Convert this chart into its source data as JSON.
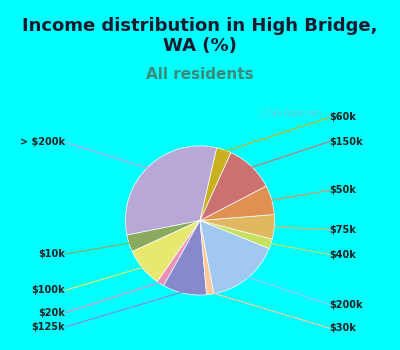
{
  "title": "Income distribution in High Bridge,\nWA (%)",
  "subtitle": "All residents",
  "bg_cyan": "#00FFFF",
  "chart_bg": "#e0f5e0",
  "labels": [
    "> $200k",
    "$10k",
    "$100k",
    "$20k",
    "$125k",
    "$30k",
    "$200k",
    "$40k",
    "$75k",
    "$50k",
    "$150k",
    "$60k"
  ],
  "sizes": [
    30,
    3.5,
    8,
    1.5,
    9,
    1.5,
    15,
    2,
    5,
    6,
    10,
    3
  ],
  "colors": [
    "#b8a8d8",
    "#8aaa60",
    "#e8e870",
    "#e890b8",
    "#8888cc",
    "#ffc898",
    "#a0c8f0",
    "#c8e060",
    "#e0b860",
    "#e09050",
    "#cc7070",
    "#c8b020"
  ],
  "startangle": 77,
  "title_fontsize": 13,
  "subtitle_fontsize": 11,
  "label_fontsize": 7
}
